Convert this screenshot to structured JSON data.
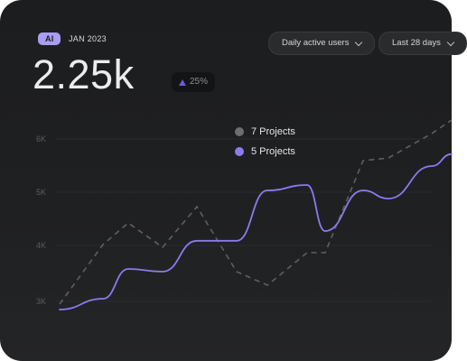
{
  "header": {
    "badge": "AI",
    "date": "JAN 2023",
    "value": "2.25k",
    "delta": "25%"
  },
  "controls": {
    "metric_select": "Daily active users",
    "range_select": "Last 28 days"
  },
  "legend": [
    {
      "label": "7 Projects",
      "color": "#6e6e72"
    },
    {
      "label": "5 Projects",
      "color": "#8b7bf0"
    }
  ],
  "chart_data": {
    "type": "line",
    "y_ticks": [
      "6K",
      "5K",
      "4K",
      "3K"
    ],
    "series": [
      {
        "name": "5 Projects",
        "style": "solid",
        "color": "#8b7bf0",
        "values": [
          2.85,
          3.05,
          3.6,
          3.55,
          4.12,
          4.12,
          5.05,
          5.15,
          4.3,
          5.05,
          4.9,
          5.5,
          5.72
        ]
      },
      {
        "name": "7 Projects",
        "style": "dashed",
        "color": "#5e5f63",
        "values": [
          2.95,
          4.05,
          4.45,
          4.0,
          4.75,
          3.55,
          3.3,
          3.9,
          3.9,
          5.6,
          5.65,
          6.1,
          6.35
        ]
      }
    ]
  }
}
